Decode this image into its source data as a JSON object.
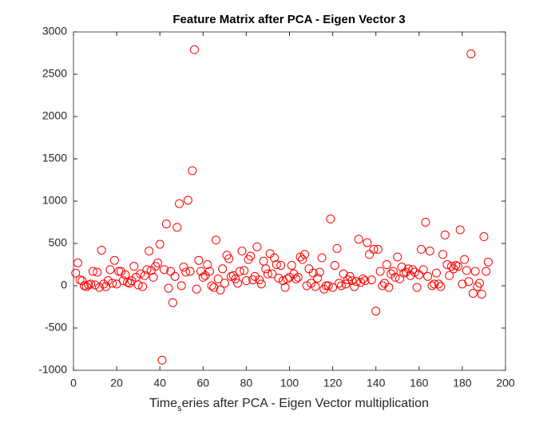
{
  "chart_data": {
    "type": "scatter",
    "title": "Feature Matrix after PCA - Eigen Vector 3",
    "xlabel": [
      "Time",
      "s",
      "eries after PCA - Eigen Vector multiplication"
    ],
    "color": "#ff0000",
    "xlim": [
      0,
      200
    ],
    "xticks": [
      0,
      20,
      40,
      60,
      80,
      100,
      120,
      140,
      160,
      180,
      200
    ],
    "ylim": [
      -1000,
      3000
    ],
    "yticks": [
      -1000,
      -500,
      0,
      500,
      1000,
      1500,
      2000,
      2500,
      3000
    ],
    "grid": false,
    "x": [
      1,
      2,
      3,
      4,
      5,
      6,
      7,
      8,
      9,
      10,
      11,
      12,
      13,
      14,
      15,
      16,
      17,
      18,
      19,
      20,
      21,
      22,
      23,
      24,
      25,
      26,
      27,
      28,
      29,
      30,
      31,
      32,
      33,
      34,
      35,
      36,
      37,
      38,
      39,
      40,
      41,
      42,
      43,
      44,
      45,
      46,
      47,
      48,
      49,
      50,
      51,
      52,
      53,
      54,
      55,
      56,
      57,
      58,
      59,
      60,
      61,
      62,
      63,
      64,
      65,
      66,
      67,
      68,
      69,
      70,
      71,
      72,
      73,
      74,
      75,
      76,
      77,
      78,
      79,
      80,
      81,
      82,
      83,
      84,
      85,
      86,
      87,
      88,
      89,
      90,
      91,
      92,
      93,
      94,
      95,
      96,
      97,
      98,
      99,
      100,
      101,
      102,
      103,
      104,
      105,
      106,
      107,
      108,
      109,
      110,
      111,
      112,
      113,
      114,
      115,
      116,
      117,
      118,
      119,
      120,
      121,
      122,
      123,
      124,
      125,
      126,
      127,
      128,
      129,
      130,
      131,
      132,
      133,
      134,
      135,
      136,
      137,
      138,
      139,
      140,
      141,
      142,
      143,
      144,
      145,
      146,
      147,
      148,
      149,
      150,
      151,
      152,
      153,
      154,
      155,
      156,
      157,
      158,
      159,
      160,
      161,
      162,
      163,
      164,
      165,
      166,
      167,
      168,
      169,
      170,
      171,
      172,
      173,
      174,
      175,
      176,
      177,
      178,
      179,
      180,
      181,
      182,
      183,
      184,
      185,
      186,
      187,
      188,
      189,
      190,
      191,
      192
    ],
    "values": [
      150,
      270,
      70,
      60,
      0,
      -10,
      10,
      20,
      170,
      10,
      160,
      -20,
      420,
      20,
      -10,
      60,
      190,
      30,
      300,
      20,
      170,
      170,
      60,
      130,
      40,
      30,
      60,
      230,
      100,
      10,
      140,
      -10,
      120,
      190,
      410,
      180,
      100,
      230,
      270,
      490,
      -880,
      190,
      730,
      -30,
      170,
      -200,
      110,
      690,
      970,
      0,
      220,
      160,
      1010,
      170,
      1360,
      2790,
      -40,
      300,
      170,
      100,
      120,
      250,
      170,
      0,
      -20,
      540,
      80,
      -50,
      200,
      30,
      360,
      320,
      110,
      120,
      80,
      30,
      170,
      410,
      180,
      60,
      310,
      350,
      70,
      110,
      460,
      70,
      20,
      290,
      200,
      140,
      380,
      140,
      330,
      250,
      90,
      240,
      60,
      -20,
      80,
      100,
      240,
      140,
      80,
      100,
      340,
      310,
      370,
      0,
      200,
      30,
      150,
      -10,
      90,
      160,
      330,
      -40,
      0,
      0,
      790,
      -20,
      240,
      440,
      30,
      0,
      140,
      20,
      70,
      110,
      60,
      -10,
      50,
      550,
      40,
      80,
      60,
      510,
      370,
      70,
      430,
      -300,
      430,
      170,
      0,
      30,
      250,
      -20,
      140,
      170,
      100,
      340,
      80,
      220,
      150,
      160,
      200,
      120,
      190,
      160,
      -20,
      130,
      430,
      190,
      750,
      110,
      410,
      0,
      20,
      150,
      20,
      -10,
      370,
      600,
      250,
      120,
      230,
      200,
      240,
      230,
      660,
      20,
      310,
      180,
      50,
      2740,
      -90,
      170,
      -10,
      30,
      -100,
      580,
      170,
      280
    ]
  }
}
